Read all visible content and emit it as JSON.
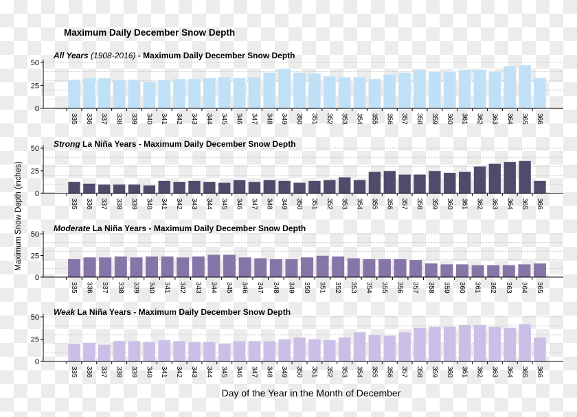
{
  "chart_data": {
    "type": "bar",
    "title": "Maximum Daily December Snow Depth",
    "xlabel": "Day of the Year in the Month of December",
    "ylabel": "Maximum Snow Depth (inches)",
    "panels": [
      {
        "title_em": "All Years",
        "title_paren": " (1908-2016)",
        "title_rest": " - Maximum Daily December Snow Depth",
        "color": "#bfe0f7",
        "ylim": [
          0,
          50
        ],
        "yticks": [
          "0",
          "25",
          "50"
        ],
        "categories": [
          "335",
          "336",
          "337",
          "338",
          "339",
          "340",
          "341",
          "342",
          "343",
          "344",
          "345",
          "346",
          "347",
          "348",
          "349",
          "350",
          "351",
          "352",
          "353",
          "354",
          "355",
          "356",
          "357",
          "358",
          "359",
          "360",
          "361",
          "362",
          "363",
          "364",
          "365",
          "366"
        ],
        "values": [
          31,
          33,
          33,
          31,
          31,
          29,
          31,
          32,
          32,
          33,
          34,
          33,
          34,
          39,
          43,
          39,
          38,
          35,
          34,
          34,
          32,
          37,
          39,
          42,
          40,
          40,
          42,
          42,
          40,
          46,
          47,
          33
        ]
      },
      {
        "title_em": "Strong",
        "title_paren": "",
        "title_rest": " La Niña Years - Maximum Daily December Snow Depth",
        "color": "#524a6b",
        "ylim": [
          0,
          50
        ],
        "yticks": [
          "0",
          "25",
          "50"
        ],
        "categories": [
          "335",
          "336",
          "337",
          "338",
          "339",
          "340",
          "341",
          "342",
          "343",
          "344",
          "345",
          "346",
          "347",
          "348",
          "349",
          "350",
          "351",
          "352",
          "353",
          "354",
          "355",
          "356",
          "357",
          "358",
          "359",
          "360",
          "361",
          "362",
          "363",
          "364",
          "365",
          "366"
        ],
        "values": [
          13,
          11,
          10,
          10,
          10,
          9,
          14,
          13,
          14,
          13,
          12,
          15,
          13,
          15,
          14,
          12,
          14,
          15,
          18,
          15,
          24,
          25,
          21,
          21,
          25,
          23,
          24,
          30,
          33,
          35,
          36,
          14
        ]
      },
      {
        "title_em": "Moderate",
        "title_paren": "",
        "title_rest": " La Niña Years - Maximum Daily December Snow Depth",
        "color": "#8676a8",
        "ylim": [
          0,
          50
        ],
        "yticks": [
          "0",
          "25",
          "50"
        ],
        "categories": [
          "335",
          "336",
          "337",
          "338",
          "339",
          "340",
          "341",
          "342",
          "343",
          "344",
          "345",
          "346",
          "347",
          "348",
          "349",
          "350",
          "351",
          "352",
          "353",
          "354",
          "355",
          "356",
          "357",
          "358",
          "359",
          "360",
          "361",
          "362",
          "363",
          "364",
          "365"
        ],
        "values": [
          21,
          23,
          23,
          24,
          23,
          24,
          24,
          23,
          24,
          26,
          26,
          23,
          22,
          21,
          21,
          23,
          25,
          24,
          22,
          21,
          21,
          21,
          20,
          16,
          15,
          15,
          14,
          14,
          14,
          15,
          16
        ]
      },
      {
        "title_em": "Weak",
        "title_paren": "",
        "title_rest": " La Niña Years - Maximum Daily December Snow Depth",
        "color": "#cbbfe8",
        "ylim": [
          0,
          50
        ],
        "yticks": [
          "0",
          "25",
          "50"
        ],
        "categories": [
          "335",
          "336",
          "337",
          "338",
          "339",
          "340",
          "341",
          "342",
          "343",
          "344",
          "345",
          "346",
          "347",
          "348",
          "349",
          "350",
          "351",
          "352",
          "353",
          "354",
          "355",
          "356",
          "357",
          "358",
          "359",
          "360",
          "361",
          "362",
          "363",
          "364",
          "365",
          "366"
        ],
        "values": [
          20,
          21,
          19,
          23,
          23,
          22,
          24,
          23,
          22,
          22,
          20,
          23,
          23,
          23,
          25,
          27,
          25,
          24,
          27,
          33,
          30,
          29,
          33,
          38,
          39,
          39,
          41,
          41,
          39,
          38,
          42,
          27
        ]
      }
    ]
  }
}
